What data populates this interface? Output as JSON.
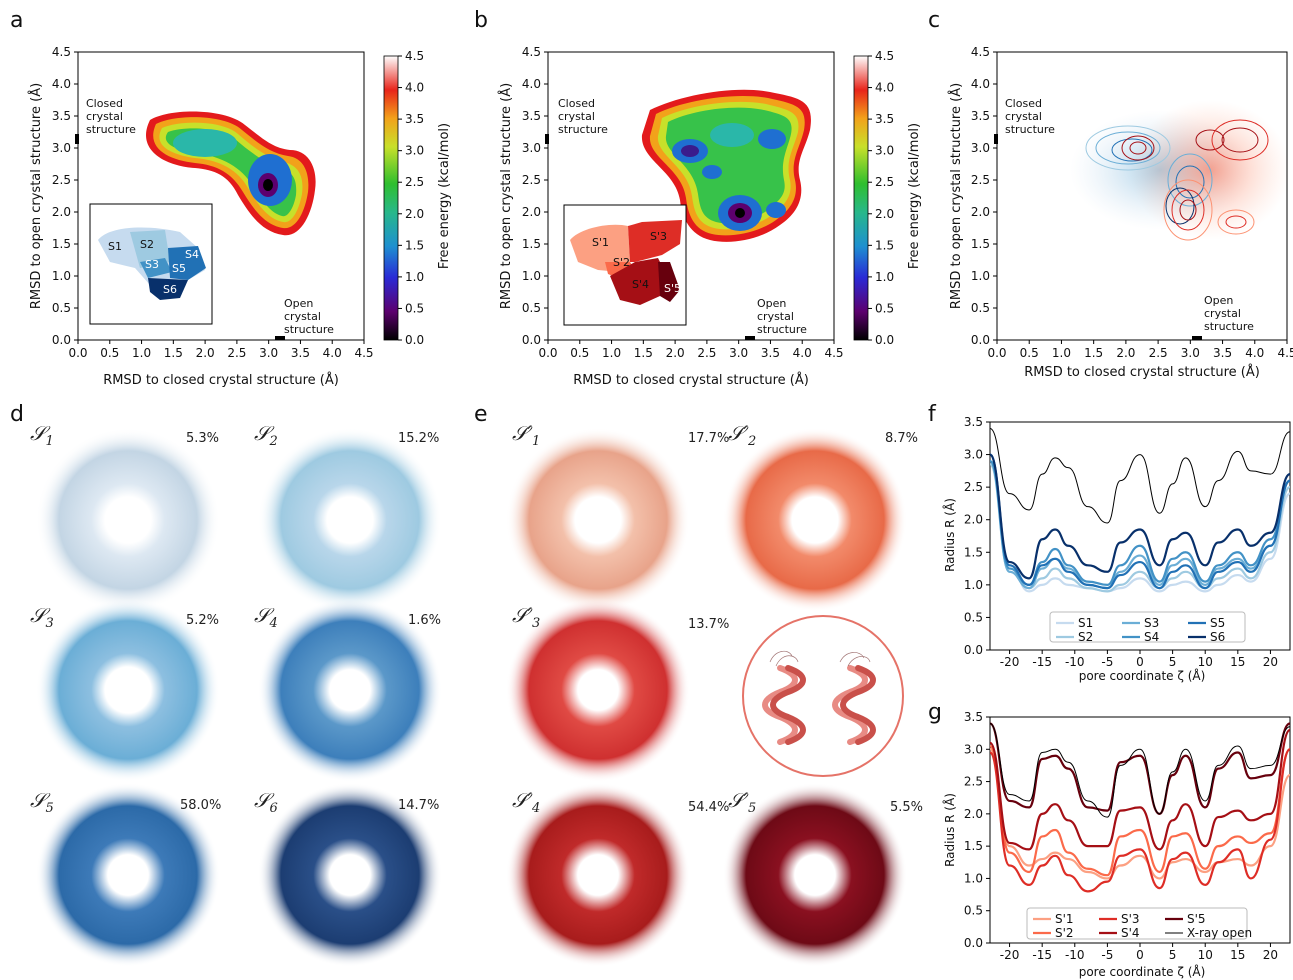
{
  "panel_labels": [
    "a",
    "b",
    "c",
    "d",
    "e",
    "f",
    "g"
  ],
  "fe_maps": {
    "xlabel": "RMSD to closed crystal structure (Å)",
    "ylabel": "RMSD to open crystal structure (Å)",
    "ticks": [
      "0.0",
      "0.5",
      "1.0",
      "1.5",
      "2.0",
      "2.5",
      "3.0",
      "3.5",
      "4.0",
      "4.5"
    ],
    "closed_label": [
      "Closed",
      "crystal",
      "structure"
    ],
    "open_label": [
      "Open",
      "crystal",
      "structure"
    ],
    "colorbar_label": "Free energy (kcal/mol)",
    "colorbar_ticks": [
      "0.0",
      "0.5",
      "1.0",
      "1.5",
      "2.0",
      "2.5",
      "3.0",
      "3.5",
      "4.0",
      "4.5"
    ],
    "inset_a": [
      "S1",
      "S2",
      "S3",
      "S4",
      "S5",
      "S6"
    ],
    "inset_b": [
      "S'1",
      "S'2",
      "S'3",
      "S'4",
      "S'5"
    ]
  },
  "states_d": [
    {
      "label": "S1",
      "sub": "1",
      "pct": "5.3%"
    },
    {
      "label": "S2",
      "sub": "2",
      "pct": "15.2%"
    },
    {
      "label": "S3",
      "sub": "3",
      "pct": "5.2%"
    },
    {
      "label": "S4",
      "sub": "4",
      "pct": "1.6%"
    },
    {
      "label": "S5",
      "sub": "5",
      "pct": "58.0%"
    },
    {
      "label": "S6",
      "sub": "6",
      "pct": "14.7%"
    }
  ],
  "states_e": [
    {
      "label": "S'1",
      "sub": "1",
      "pct": "17.7%"
    },
    {
      "label": "S'2",
      "sub": "2",
      "pct": "8.7%"
    },
    {
      "label": "S'3",
      "sub": "3",
      "pct": "13.7%"
    },
    {
      "label": "S'4",
      "sub": "4",
      "pct": "54.4%"
    },
    {
      "label": "S'5",
      "sub": "5",
      "pct": "5.5%"
    }
  ],
  "chart_data": [
    {
      "panel": "f",
      "type": "line",
      "xlabel": "pore coordinate ζ (Å)",
      "ylabel": "Radius R (Å)",
      "xlim": [
        -23,
        23
      ],
      "ylim": [
        0.0,
        3.5
      ],
      "xticks": [
        -20,
        -15,
        -10,
        -5,
        0,
        5,
        10,
        15,
        20
      ],
      "yticks": [
        "0.0",
        "0.5",
        "1.0",
        "1.5",
        "2.0",
        "2.5",
        "3.0",
        "3.5"
      ],
      "x": [
        -23,
        -20,
        -17,
        -15,
        -13,
        -11,
        -8,
        -5,
        -3,
        0,
        3,
        5,
        7,
        10,
        12,
        15,
        17,
        20,
        23
      ],
      "series": [
        {
          "name": "S1",
          "color": "#c6dbef",
          "values": [
            2.9,
            1.3,
            0.9,
            1.0,
            1.1,
            1.0,
            0.95,
            0.9,
            0.95,
            1.1,
            0.9,
            1.0,
            1.05,
            0.9,
            1.0,
            1.15,
            1.05,
            1.4,
            2.4
          ]
        },
        {
          "name": "S2",
          "color": "#9ecae1",
          "values": [
            2.85,
            1.2,
            0.95,
            1.1,
            1.25,
            1.1,
            0.95,
            0.9,
            1.0,
            1.2,
            0.95,
            1.1,
            1.2,
            0.95,
            1.1,
            1.25,
            1.1,
            1.5,
            2.5
          ]
        },
        {
          "name": "S3",
          "color": "#6baed6",
          "values": [
            2.9,
            1.2,
            0.95,
            1.25,
            1.4,
            1.25,
            1.0,
            0.95,
            1.2,
            1.45,
            1.0,
            1.3,
            1.4,
            1.0,
            1.25,
            1.4,
            1.25,
            1.6,
            2.6
          ]
        },
        {
          "name": "S4",
          "color": "#4292c6",
          "values": [
            2.9,
            1.25,
            1.0,
            1.35,
            1.55,
            1.3,
            1.05,
            1.0,
            1.3,
            1.6,
            1.05,
            1.4,
            1.5,
            1.05,
            1.3,
            1.5,
            1.3,
            1.7,
            2.6
          ]
        },
        {
          "name": "S5",
          "color": "#2171b5",
          "values": [
            3.0,
            1.3,
            1.0,
            1.3,
            1.4,
            1.2,
            1.0,
            0.95,
            1.15,
            1.35,
            0.95,
            1.2,
            1.3,
            0.95,
            1.2,
            1.35,
            1.2,
            1.6,
            2.6
          ]
        },
        {
          "name": "S6",
          "color": "#08306b",
          "values": [
            3.0,
            1.35,
            1.1,
            1.7,
            1.85,
            1.6,
            1.3,
            1.2,
            1.65,
            1.85,
            1.3,
            1.7,
            1.8,
            1.3,
            1.65,
            1.85,
            1.6,
            1.8,
            2.7
          ]
        },
        {
          "name": "",
          "color": "#000000",
          "values": [
            3.4,
            2.4,
            2.15,
            2.7,
            2.95,
            2.8,
            2.2,
            1.95,
            2.6,
            3.0,
            2.1,
            2.55,
            2.95,
            2.2,
            2.6,
            3.05,
            2.75,
            2.7,
            3.35
          ]
        }
      ]
    },
    {
      "panel": "g",
      "type": "line",
      "xlabel": "pore coordinate ζ (Å)",
      "ylabel": "Radius R (Å)",
      "xlim": [
        -23,
        23
      ],
      "ylim": [
        0.0,
        3.5
      ],
      "xticks": [
        -20,
        -15,
        -10,
        -5,
        0,
        5,
        10,
        15,
        20
      ],
      "yticks": [
        "0.0",
        "0.5",
        "1.0",
        "1.5",
        "2.0",
        "2.5",
        "3.0",
        "3.5"
      ],
      "x": [
        -23,
        -20,
        -17,
        -15,
        -13,
        -11,
        -8,
        -5,
        -3,
        0,
        3,
        5,
        7,
        10,
        12,
        15,
        17,
        20,
        23
      ],
      "series": [
        {
          "name": "S'1",
          "color": "#fca082",
          "values": [
            3.0,
            1.5,
            1.2,
            1.3,
            1.4,
            1.3,
            1.1,
            1.0,
            1.2,
            1.35,
            1.0,
            1.25,
            1.3,
            1.1,
            1.25,
            1.3,
            1.2,
            1.5,
            2.6
          ]
        },
        {
          "name": "S'2",
          "color": "#fb6a4a",
          "values": [
            3.05,
            1.4,
            1.1,
            1.65,
            1.75,
            1.4,
            1.15,
            1.05,
            1.65,
            1.75,
            1.1,
            1.65,
            1.7,
            1.15,
            1.5,
            1.65,
            1.55,
            1.7,
            3.0
          ]
        },
        {
          "name": "S'3",
          "color": "#de2d26",
          "values": [
            2.95,
            1.2,
            0.9,
            1.2,
            1.35,
            1.05,
            0.8,
            0.95,
            1.35,
            1.45,
            0.85,
            1.3,
            1.4,
            0.9,
            1.25,
            1.45,
            1.0,
            1.6,
            3.0
          ]
        },
        {
          "name": "S'4",
          "color": "#a50f15",
          "values": [
            3.1,
            1.55,
            1.45,
            2.0,
            2.15,
            1.9,
            1.5,
            1.5,
            2.05,
            2.1,
            1.45,
            1.9,
            2.15,
            1.5,
            1.95,
            2.05,
            1.9,
            2.0,
            3.3
          ]
        },
        {
          "name": "S'5",
          "color": "#67000d",
          "values": [
            3.4,
            2.2,
            2.1,
            2.85,
            2.9,
            2.7,
            2.1,
            2.05,
            2.8,
            2.9,
            2.0,
            2.6,
            2.9,
            2.1,
            2.7,
            2.95,
            2.55,
            2.6,
            3.4
          ]
        },
        {
          "name": "X-ray open",
          "color": "#000000",
          "values": [
            3.4,
            2.3,
            2.2,
            2.95,
            3.0,
            2.8,
            2.2,
            1.95,
            2.75,
            3.0,
            2.0,
            2.65,
            3.0,
            2.2,
            2.75,
            3.05,
            2.7,
            2.75,
            3.35
          ]
        }
      ]
    }
  ]
}
